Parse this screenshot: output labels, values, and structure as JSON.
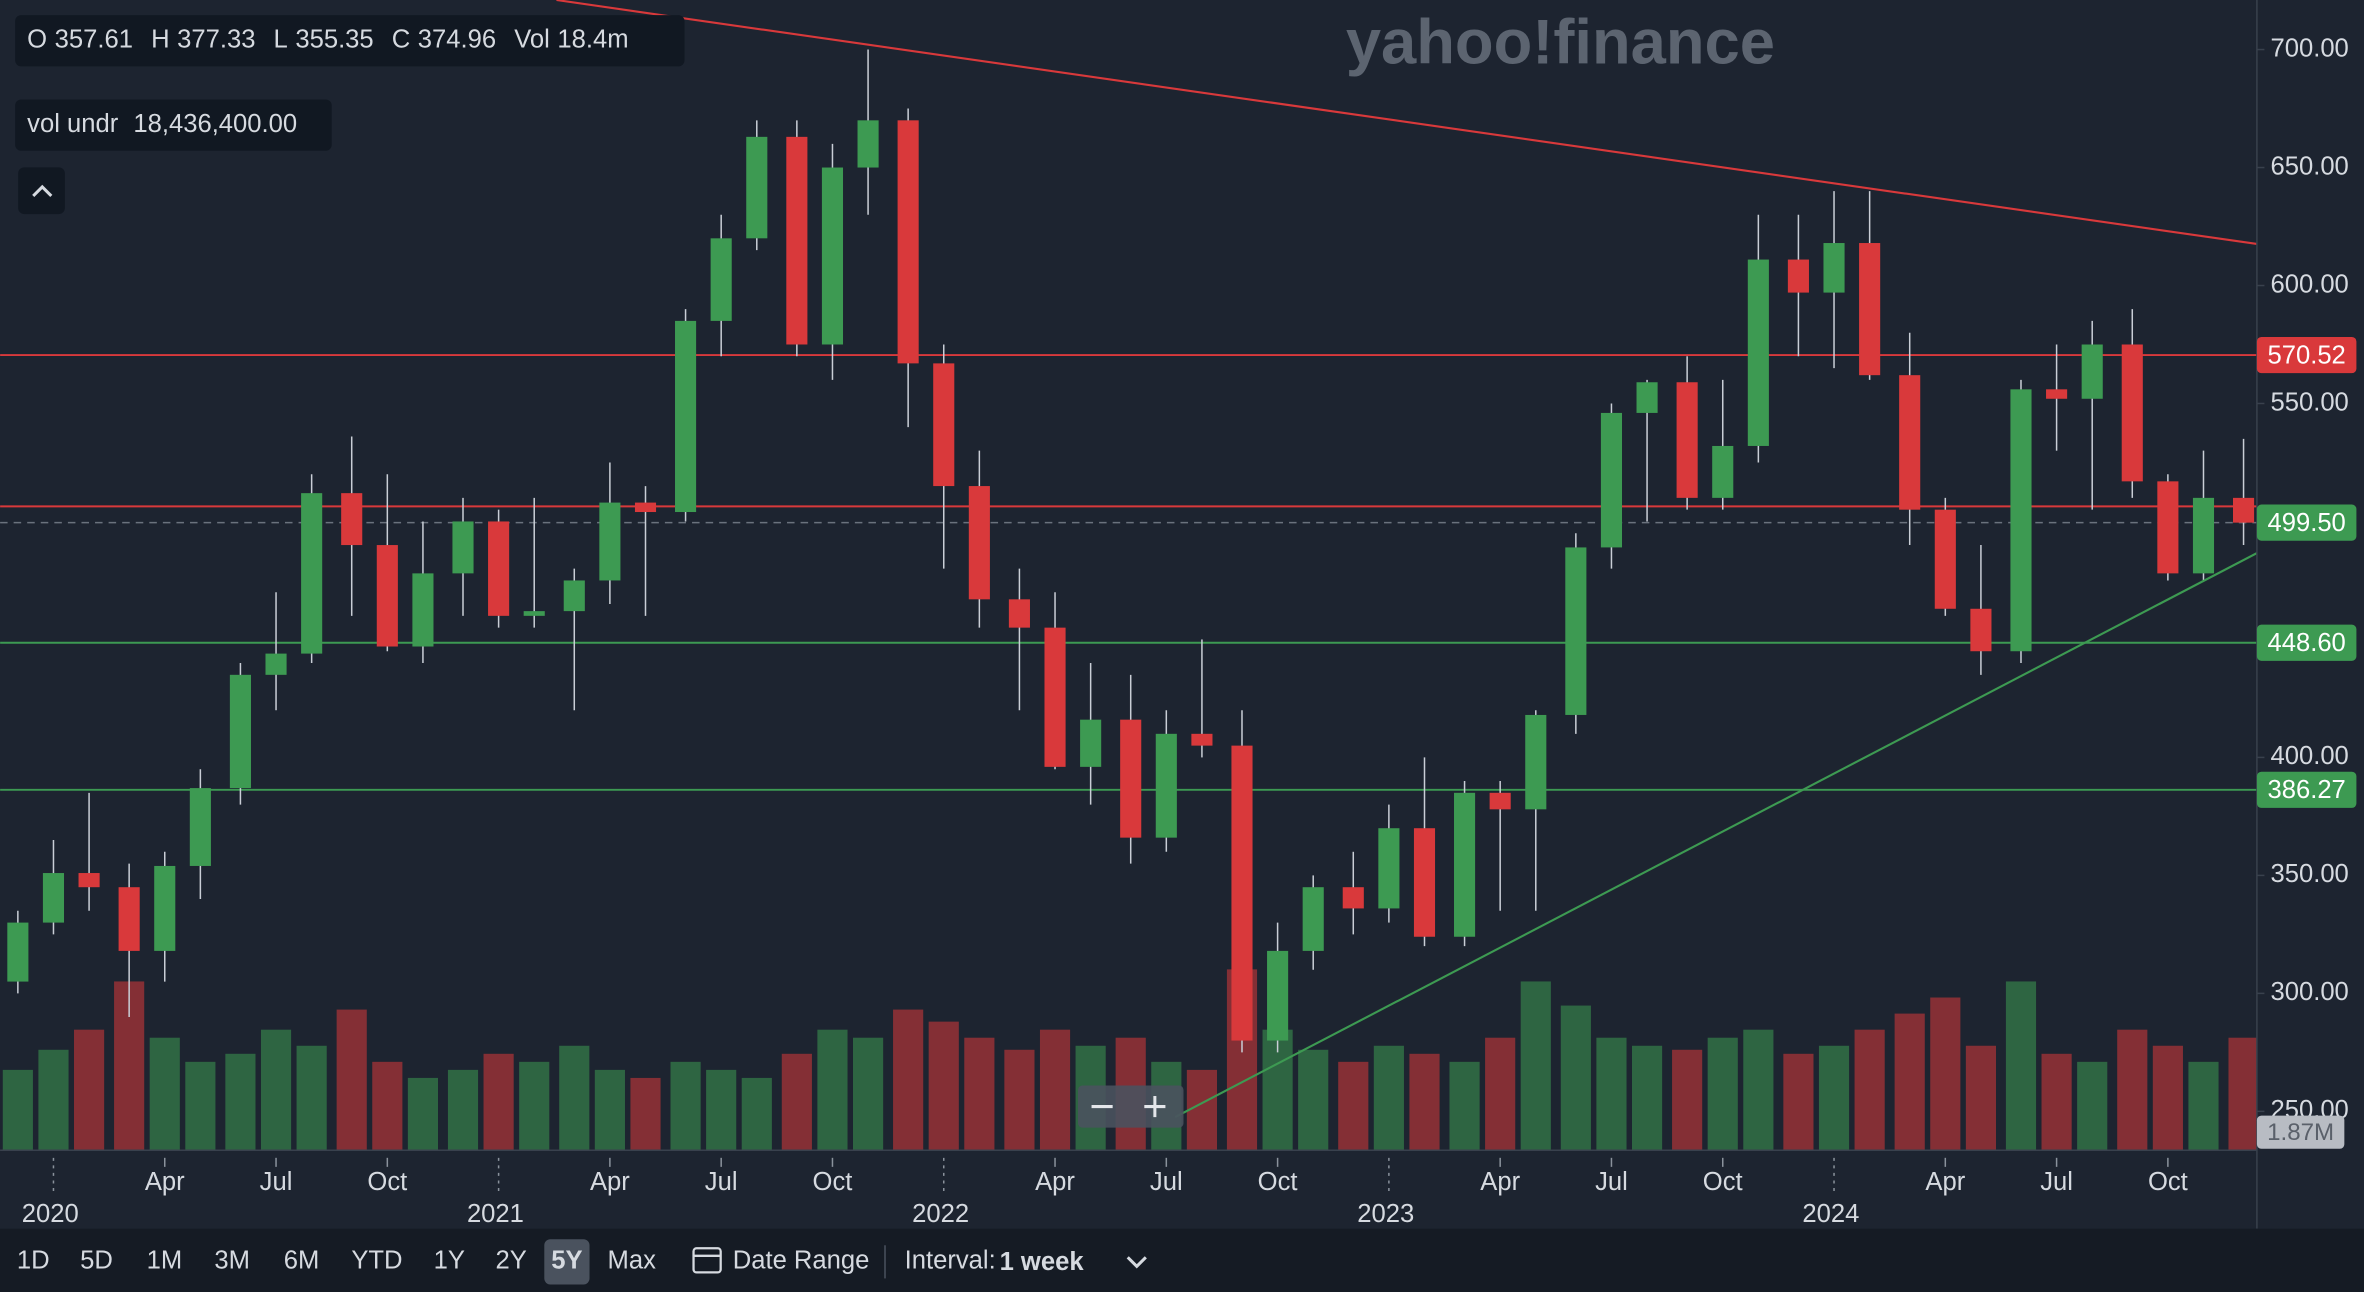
{
  "watermark": "yahoo!finance",
  "legend": [
    {
      "key": "O",
      "value": 357.61
    },
    {
      "key": "H",
      "value": 377.33
    },
    {
      "key": "L",
      "value": 355.35
    },
    {
      "key": "C",
      "value": 374.96
    },
    {
      "key": "Vol",
      "value": "18.4m"
    }
  ],
  "indicator": {
    "key": "vol undr",
    "value": "18,436,400.00"
  },
  "toolbar": {
    "ranges": [
      "1D",
      "5D",
      "1M",
      "3M",
      "6M",
      "YTD",
      "1Y",
      "2Y",
      "5Y",
      "Max"
    ],
    "selected_range": "5Y",
    "date_range": "Date Range",
    "interval_label": "Interval:",
    "interval": "1 week"
  },
  "chart_data": {
    "type": "candlestick",
    "up_color": "#3d9a52",
    "down_color": "#d9393b",
    "x": [
      2019.92,
      2020.0,
      2020.08,
      2020.17,
      2020.25,
      2020.33,
      2020.42,
      2020.5,
      2020.58,
      2020.67,
      2020.75,
      2020.83,
      2020.92,
      2021.0,
      2021.08,
      2021.17,
      2021.25,
      2021.33,
      2021.42,
      2021.5,
      2021.58,
      2021.67,
      2021.75,
      2021.83,
      2021.92,
      2022.0,
      2022.08,
      2022.17,
      2022.25,
      2022.33,
      2022.42,
      2022.5,
      2022.58,
      2022.67,
      2022.75,
      2022.83,
      2022.92,
      2023.0,
      2023.08,
      2023.17,
      2023.25,
      2023.33,
      2023.42,
      2023.5,
      2023.58,
      2023.67,
      2023.75,
      2023.83,
      2023.92,
      2024.0,
      2024.08,
      2024.17,
      2024.25,
      2024.33,
      2024.42,
      2024.5,
      2024.58,
      2024.67,
      2024.75,
      2024.83,
      2024.92
    ],
    "open": [
      305,
      330,
      351,
      345,
      318,
      354,
      387,
      435,
      444,
      512,
      490,
      447,
      478,
      500,
      460,
      462,
      475,
      508,
      504,
      585,
      620,
      663,
      575,
      650,
      670,
      567,
      515,
      467,
      455,
      396,
      416,
      366,
      410,
      405,
      280,
      318,
      345,
      336,
      370,
      324,
      385,
      378,
      418,
      489,
      546,
      559,
      510,
      532,
      611,
      597,
      618,
      562,
      505,
      463,
      445,
      556,
      552,
      575,
      517,
      478,
      510
    ],
    "high": [
      335,
      365,
      385,
      355,
      360,
      395,
      440,
      470,
      520,
      536,
      520,
      500,
      510,
      505,
      510,
      480,
      525,
      515,
      590,
      630,
      670,
      670,
      660,
      700,
      675,
      575,
      530,
      480,
      470,
      440,
      435,
      420,
      450,
      420,
      330,
      350,
      360,
      380,
      400,
      390,
      390,
      420,
      495,
      550,
      560,
      570,
      560,
      630,
      630,
      640,
      640,
      580,
      510,
      490,
      560,
      575,
      585,
      590,
      520,
      530,
      535
    ],
    "low": [
      300,
      325,
      335,
      290,
      305,
      340,
      380,
      420,
      440,
      460,
      445,
      440,
      460,
      455,
      455,
      420,
      465,
      460,
      500,
      570,
      615,
      570,
      560,
      630,
      540,
      480,
      455,
      420,
      395,
      380,
      355,
      360,
      400,
      275,
      275,
      310,
      325,
      330,
      320,
      320,
      335,
      335,
      410,
      480,
      500,
      505,
      505,
      525,
      570,
      565,
      560,
      490,
      460,
      435,
      440,
      530,
      505,
      510,
      475,
      475,
      490
    ],
    "close": [
      330,
      351,
      345,
      318,
      354,
      387,
      435,
      444,
      512,
      490,
      447,
      478,
      500,
      460,
      462,
      475,
      508,
      504,
      585,
      620,
      663,
      575,
      650,
      670,
      567,
      515,
      467,
      455,
      396,
      416,
      366,
      410,
      405,
      280,
      318,
      345,
      336,
      370,
      324,
      385,
      378,
      418,
      489,
      546,
      559,
      510,
      532,
      611,
      597,
      618,
      562,
      505,
      463,
      445,
      556,
      552,
      575,
      517,
      478,
      510,
      499.5
    ],
    "volume": [
      20,
      25,
      30,
      42,
      28,
      22,
      24,
      30,
      26,
      35,
      22,
      18,
      20,
      24,
      22,
      26,
      20,
      18,
      22,
      20,
      18,
      24,
      30,
      28,
      35,
      32,
      28,
      25,
      30,
      26,
      28,
      22,
      20,
      45,
      30,
      25,
      22,
      26,
      24,
      22,
      28,
      42,
      36,
      28,
      26,
      25,
      28,
      30,
      24,
      26,
      30,
      34,
      38,
      26,
      42,
      24,
      22,
      30,
      26,
      22,
      28
    ],
    "vlim": [
      0,
      60
    ],
    "volume_label": "1.87M",
    "xlim": [
      2019.88,
      2024.95
    ],
    "xticks": [
      2020,
      {
        "value": 2020.25,
        "label": "Apr"
      },
      {
        "value": 2020.5,
        "label": "Jul"
      },
      {
        "value": 2020.75,
        "label": "Oct"
      },
      2021,
      {
        "value": 2021.25,
        "label": "Apr"
      },
      {
        "value": 2021.5,
        "label": "Jul"
      },
      {
        "value": 2021.75,
        "label": "Oct"
      },
      2022,
      {
        "value": 2022.25,
        "label": "Apr"
      },
      {
        "value": 2022.5,
        "label": "Jul"
      },
      {
        "value": 2022.75,
        "label": "Oct"
      },
      2023,
      {
        "value": 2023.25,
        "label": "Apr"
      },
      {
        "value": 2023.5,
        "label": "Jul"
      },
      {
        "value": 2023.75,
        "label": "Oct"
      },
      2024,
      {
        "value": 2024.25,
        "label": "Apr"
      },
      {
        "value": 2024.5,
        "label": "Jul"
      },
      {
        "value": 2024.75,
        "label": "Oct"
      }
    ],
    "ylim": [
      233.5,
      721
    ],
    "yticks": [
      {
        "value": 250,
        "label": "250.00"
      },
      {
        "value": 300,
        "label": "300.00"
      },
      {
        "value": 350,
        "label": "350.00"
      },
      {
        "value": 400,
        "label": "400.00"
      },
      {
        "value": 450,
        "label": "450.00"
      },
      {
        "value": 500,
        "label": "500.00"
      },
      {
        "value": 550,
        "label": "550.00"
      },
      {
        "value": 600,
        "label": "600.00"
      },
      {
        "value": 650,
        "label": "650.00"
      },
      {
        "value": 700,
        "label": "700.00"
      }
    ],
    "grid": false,
    "levels": [
      {
        "value": 570.52,
        "label": "570.52",
        "color": "#d9393b"
      },
      {
        "value": 506.4,
        "color": "#d9393b"
      },
      {
        "value": 448.6,
        "label": "448.60",
        "color": "#3d9a52"
      },
      {
        "value": 386.27,
        "label": "386.27",
        "color": "#3d9a52"
      }
    ],
    "last": {
      "value": 499.5,
      "label": "499.50",
      "color": "#3d9a52"
    },
    "trendlines": [
      {
        "x": [
          2021.13,
          2024.95
        ],
        "y": [
          721,
          617.6
        ],
        "color": "#d9393b"
      },
      {
        "x": [
          2022.52,
          2024.95
        ],
        "y": [
          247.6,
          486.6
        ],
        "color": "#3d9a52"
      }
    ]
  }
}
